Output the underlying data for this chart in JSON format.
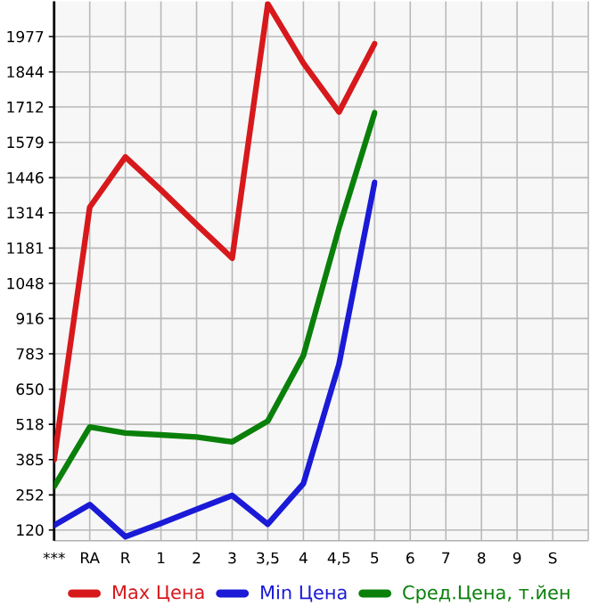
{
  "chart_data": {
    "type": "line",
    "categories": [
      "***",
      "RA",
      "R",
      "1",
      "2",
      "3",
      "3,5",
      "4",
      "4,5",
      "5",
      "6",
      "7",
      "8",
      "9",
      "S"
    ],
    "series": [
      {
        "name": "Max Цена",
        "color": "#d7191c",
        "values": [
          385,
          1335,
          1524,
          1400,
          1270,
          1143,
          2100,
          1877,
          1693,
          1950,
          null,
          null,
          null,
          null,
          null
        ]
      },
      {
        "name": "Min Цена",
        "color": "#1a1ad7",
        "values": [
          138,
          216,
          95,
          145,
          198,
          250,
          142,
          295,
          744,
          1428,
          null,
          null,
          null,
          null,
          null
        ]
      },
      {
        "name": "Сред.Цена, т.йен",
        "color": "#0a800a",
        "values": [
          284,
          508,
          485,
          478,
          470,
          452,
          530,
          777,
          1257,
          1690,
          null,
          null,
          null,
          null,
          null
        ]
      }
    ],
    "ylim": [
      80,
      2110
    ],
    "yticks": [
      120,
      252,
      385,
      518,
      650,
      783,
      916,
      1048,
      1181,
      1314,
      1446,
      1579,
      1712,
      1844,
      1977
    ],
    "grid": true,
    "legend": "bottom",
    "marker": "none",
    "line_style": "solid"
  }
}
